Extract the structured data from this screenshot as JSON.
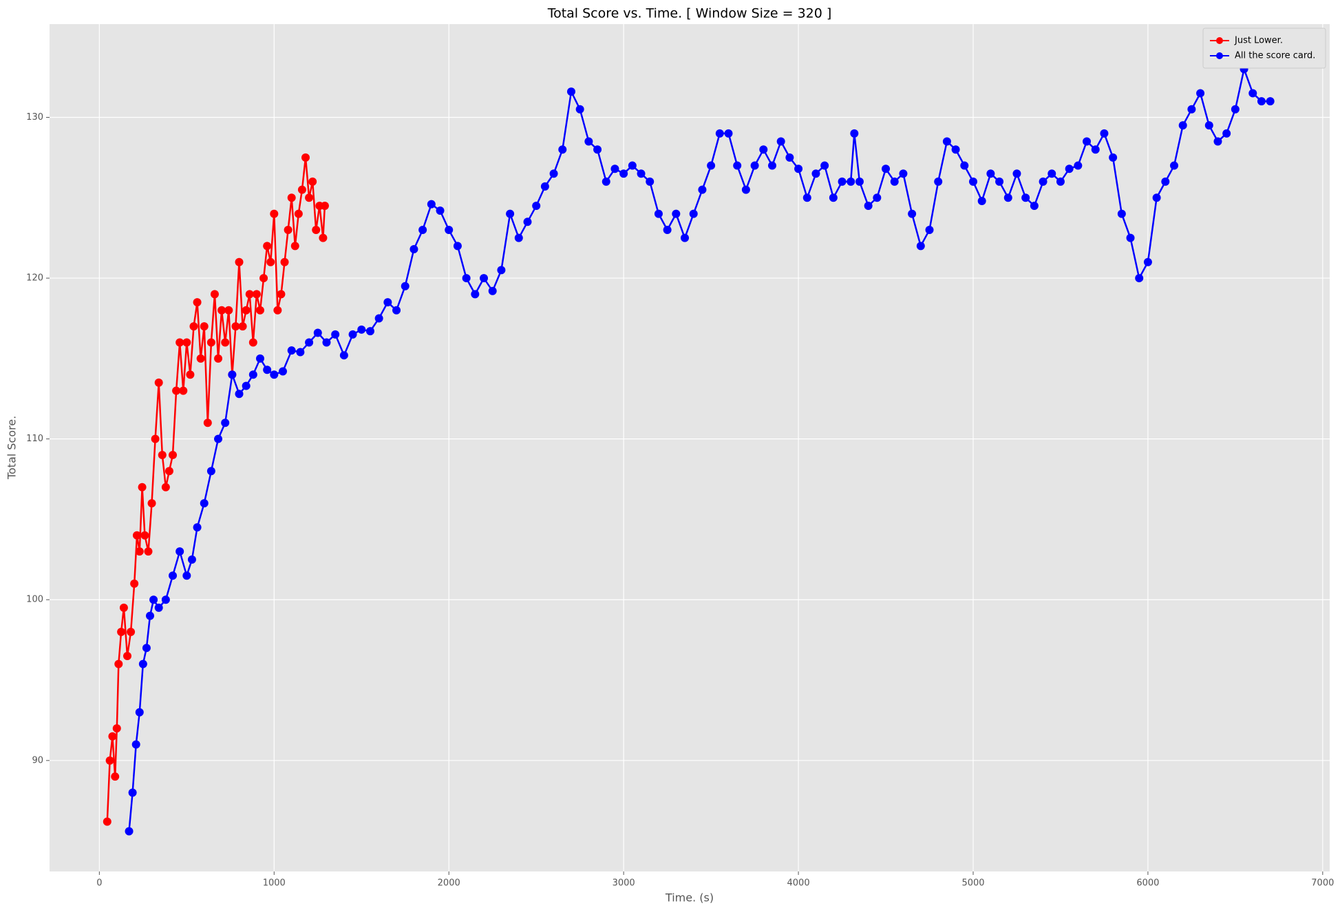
{
  "chart_data": {
    "type": "line",
    "title": "Total Score vs. Time. [ Window Size = 320 ]",
    "x_label": "Time. (s)",
    "y_label": "Total Score.",
    "xlim": [
      -285,
      7040
    ],
    "ylim": [
      83.1,
      135.8
    ],
    "xticks": [
      0,
      1000,
      2000,
      3000,
      4000,
      5000,
      6000,
      7000
    ],
    "yticks": [
      90,
      100,
      110,
      120,
      130
    ],
    "grid": true,
    "legend": "upper right",
    "series": [
      {
        "name": "Just Lower.",
        "color": "#ff0000",
        "x": [
          45,
          60,
          75,
          90,
          100,
          110,
          125,
          140,
          160,
          180,
          200,
          215,
          230,
          245,
          260,
          280,
          300,
          320,
          340,
          360,
          380,
          400,
          420,
          440,
          460,
          480,
          500,
          520,
          540,
          560,
          580,
          600,
          620,
          640,
          660,
          680,
          700,
          720,
          740,
          760,
          780,
          800,
          820,
          840,
          860,
          880,
          900,
          920,
          940,
          960,
          980,
          1000,
          1020,
          1040,
          1060,
          1080,
          1100,
          1120,
          1140,
          1160,
          1180,
          1200,
          1220,
          1240,
          1260,
          1280,
          1290
        ],
        "values": [
          86.2,
          90,
          91.5,
          89,
          92,
          96,
          98,
          99.5,
          96.5,
          98,
          101,
          104,
          103,
          107,
          104,
          103,
          106,
          110,
          113.5,
          109,
          107,
          108,
          109,
          113,
          116,
          113,
          116,
          114,
          117,
          118.5,
          115,
          117,
          111,
          116,
          119,
          115,
          118,
          116,
          118,
          114,
          117,
          121,
          117,
          118,
          119,
          116,
          119,
          118,
          120,
          122,
          121,
          124,
          118,
          119,
          121,
          123,
          125,
          122,
          124,
          125.5,
          127.5,
          125,
          126,
          123,
          124.5,
          122.5,
          124.5
        ]
      },
      {
        "name": "All the score card.",
        "color": "#0000ff",
        "x": [
          170,
          190,
          210,
          230,
          250,
          270,
          290,
          310,
          340,
          380,
          420,
          460,
          500,
          530,
          560,
          600,
          640,
          680,
          720,
          760,
          800,
          840,
          880,
          920,
          960,
          1000,
          1050,
          1100,
          1150,
          1200,
          1250,
          1300,
          1350,
          1400,
          1450,
          1500,
          1550,
          1600,
          1650,
          1700,
          1750,
          1800,
          1850,
          1900,
          1950,
          2000,
          2050,
          2100,
          2150,
          2200,
          2250,
          2300,
          2350,
          2400,
          2450,
          2500,
          2550,
          2600,
          2650,
          2700,
          2750,
          2800,
          2850,
          2900,
          2950,
          3000,
          3050,
          3100,
          3150,
          3200,
          3250,
          3300,
          3350,
          3400,
          3450,
          3500,
          3550,
          3600,
          3650,
          3700,
          3750,
          3800,
          3850,
          3900,
          3950,
          4000,
          4050,
          4100,
          4150,
          4200,
          4250,
          4300,
          4320,
          4350,
          4400,
          4450,
          4500,
          4550,
          4600,
          4650,
          4700,
          4750,
          4800,
          4850,
          4900,
          4950,
          5000,
          5050,
          5100,
          5150,
          5200,
          5250,
          5300,
          5350,
          5400,
          5450,
          5500,
          5550,
          5600,
          5650,
          5700,
          5750,
          5800,
          5850,
          5900,
          5950,
          6000,
          6050,
          6100,
          6150,
          6200,
          6250,
          6300,
          6350,
          6400,
          6450,
          6500,
          6550,
          6600,
          6650,
          6700
        ],
        "values": [
          85.6,
          88,
          91,
          93,
          96,
          97,
          99,
          100,
          99.5,
          100,
          101.5,
          103,
          101.5,
          102.5,
          104.5,
          106,
          108,
          110,
          111,
          114,
          112.8,
          113.3,
          114,
          115,
          114.3,
          114,
          114.2,
          115.5,
          115.4,
          116,
          116.6,
          116,
          116.5,
          115.2,
          116.5,
          116.8,
          116.7,
          117.5,
          118.5,
          118,
          119.5,
          121.8,
          123,
          124.6,
          124.2,
          123,
          122,
          120,
          119,
          120,
          119.2,
          120.5,
          124,
          122.5,
          123.5,
          124.5,
          125.7,
          126.5,
          128,
          131.6,
          130.5,
          128.5,
          128,
          126,
          126.8,
          126.5,
          127,
          126.5,
          126,
          124,
          123,
          124,
          122.5,
          124,
          125.5,
          127,
          129,
          129,
          127,
          125.5,
          127,
          128,
          127,
          128.5,
          127.5,
          126.8,
          125,
          126.5,
          127,
          125,
          126,
          126,
          129,
          126,
          124.5,
          125,
          126.8,
          126,
          126.5,
          124,
          122,
          123,
          126,
          128.5,
          128,
          127,
          126,
          124.8,
          126.5,
          126,
          125,
          126.5,
          125,
          124.5,
          126,
          126.5,
          126,
          126.8,
          127,
          128.5,
          128,
          129,
          127.5,
          124,
          122.5,
          120,
          121,
          125,
          126,
          127,
          129.5,
          130.5,
          131.5,
          129.5,
          128.5,
          129,
          130.5,
          133,
          131.5,
          131,
          131
        ]
      }
    ]
  }
}
